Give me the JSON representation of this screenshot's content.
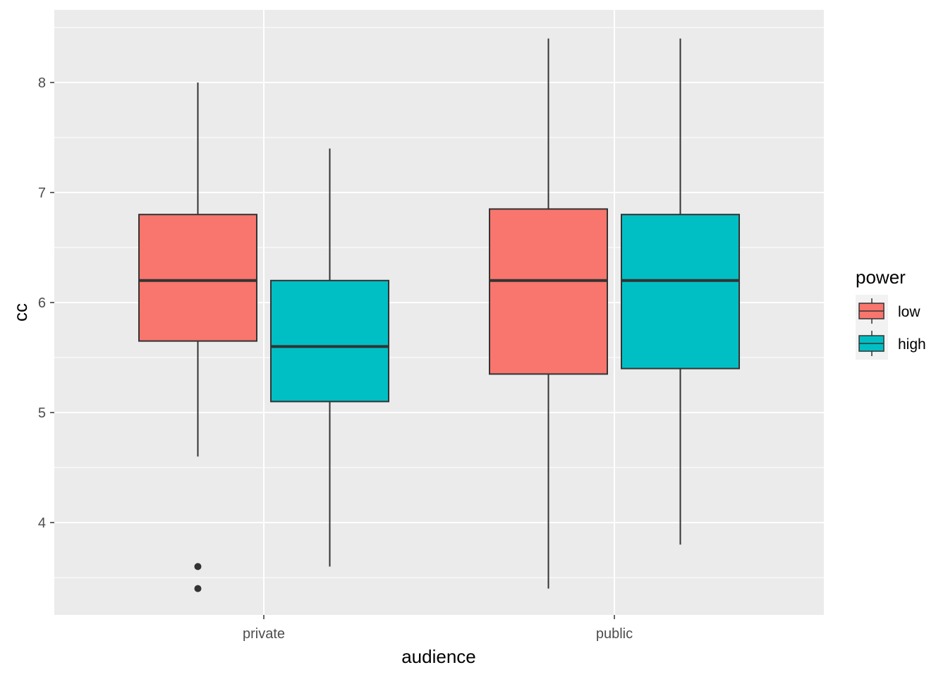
{
  "chart_data": {
    "type": "boxplot",
    "title": "",
    "xlabel": "audience",
    "ylabel": "cc",
    "categories": [
      "private",
      "public"
    ],
    "yticks": [
      4,
      5,
      6,
      7,
      8
    ],
    "ylim": [
      3.2,
      8.65
    ],
    "legend": {
      "title": "power",
      "position": "right"
    },
    "series": [
      {
        "name": "low",
        "color": "#F8766D",
        "boxes": [
          {
            "category": "private",
            "min": 4.6,
            "q1": 5.65,
            "median": 6.2,
            "q3": 6.8,
            "max": 8.0,
            "outliers": [
              3.6,
              3.4
            ]
          },
          {
            "category": "public",
            "min": 3.4,
            "q1": 5.35,
            "median": 6.2,
            "q3": 6.85,
            "max": 8.4,
            "outliers": []
          }
        ]
      },
      {
        "name": "high",
        "color": "#00BFC4",
        "boxes": [
          {
            "category": "private",
            "min": 3.6,
            "q1": 5.1,
            "median": 5.6,
            "q3": 6.2,
            "max": 7.4,
            "outliers": []
          },
          {
            "category": "public",
            "min": 3.8,
            "q1": 5.4,
            "median": 6.2,
            "q3": 6.8,
            "max": 8.4,
            "outliers": []
          }
        ]
      }
    ]
  }
}
